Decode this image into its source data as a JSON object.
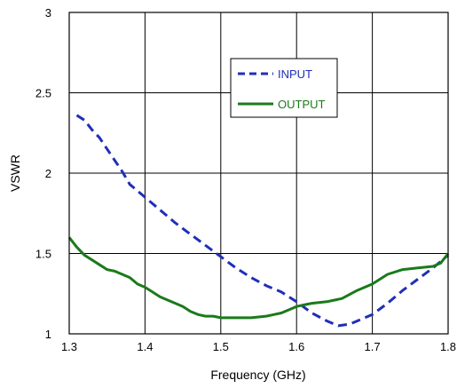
{
  "chart_data": {
    "type": "line",
    "title": "",
    "xlabel": "Frequency (GHz)",
    "ylabel": "VSWR",
    "xlim": [
      1.3,
      1.8
    ],
    "ylim": [
      1,
      3
    ],
    "x_ticks": [
      "1.3",
      "1.4",
      "1.5",
      "1.6",
      "1.7",
      "1.8"
    ],
    "y_ticks": [
      "1",
      "1.5",
      "2",
      "2.5",
      "3"
    ],
    "grid": true,
    "legend_position": "top-right",
    "series": [
      {
        "name": "INPUT",
        "color": "#1f2fb8",
        "style": "dashed",
        "x": [
          1.31,
          1.32,
          1.33,
          1.34,
          1.35,
          1.36,
          1.37,
          1.38,
          1.39,
          1.4,
          1.42,
          1.44,
          1.46,
          1.48,
          1.5,
          1.52,
          1.54,
          1.56,
          1.58,
          1.6,
          1.62,
          1.64,
          1.655,
          1.67,
          1.69,
          1.7,
          1.72,
          1.74,
          1.76,
          1.78,
          1.8
        ],
        "values": [
          2.36,
          2.33,
          2.27,
          2.22,
          2.15,
          2.08,
          2.01,
          1.93,
          1.89,
          1.85,
          1.77,
          1.69,
          1.62,
          1.55,
          1.48,
          1.41,
          1.35,
          1.3,
          1.26,
          1.2,
          1.13,
          1.08,
          1.05,
          1.06,
          1.1,
          1.12,
          1.19,
          1.27,
          1.34,
          1.41,
          1.49
        ]
      },
      {
        "name": "OUTPUT",
        "color": "#1a7a1a",
        "style": "solid",
        "x": [
          1.3,
          1.31,
          1.32,
          1.33,
          1.34,
          1.35,
          1.36,
          1.37,
          1.38,
          1.39,
          1.4,
          1.41,
          1.42,
          1.43,
          1.44,
          1.45,
          1.46,
          1.47,
          1.48,
          1.49,
          1.5,
          1.52,
          1.54,
          1.56,
          1.57,
          1.58,
          1.59,
          1.6,
          1.61,
          1.62,
          1.64,
          1.65,
          1.66,
          1.68,
          1.7,
          1.72,
          1.74,
          1.76,
          1.78,
          1.79,
          1.8
        ],
        "values": [
          1.6,
          1.54,
          1.49,
          1.46,
          1.43,
          1.4,
          1.39,
          1.37,
          1.35,
          1.31,
          1.29,
          1.26,
          1.23,
          1.21,
          1.19,
          1.17,
          1.14,
          1.12,
          1.11,
          1.11,
          1.1,
          1.1,
          1.1,
          1.11,
          1.12,
          1.13,
          1.15,
          1.17,
          1.18,
          1.19,
          1.2,
          1.21,
          1.22,
          1.27,
          1.31,
          1.37,
          1.4,
          1.41,
          1.42,
          1.44,
          1.5
        ]
      }
    ]
  }
}
